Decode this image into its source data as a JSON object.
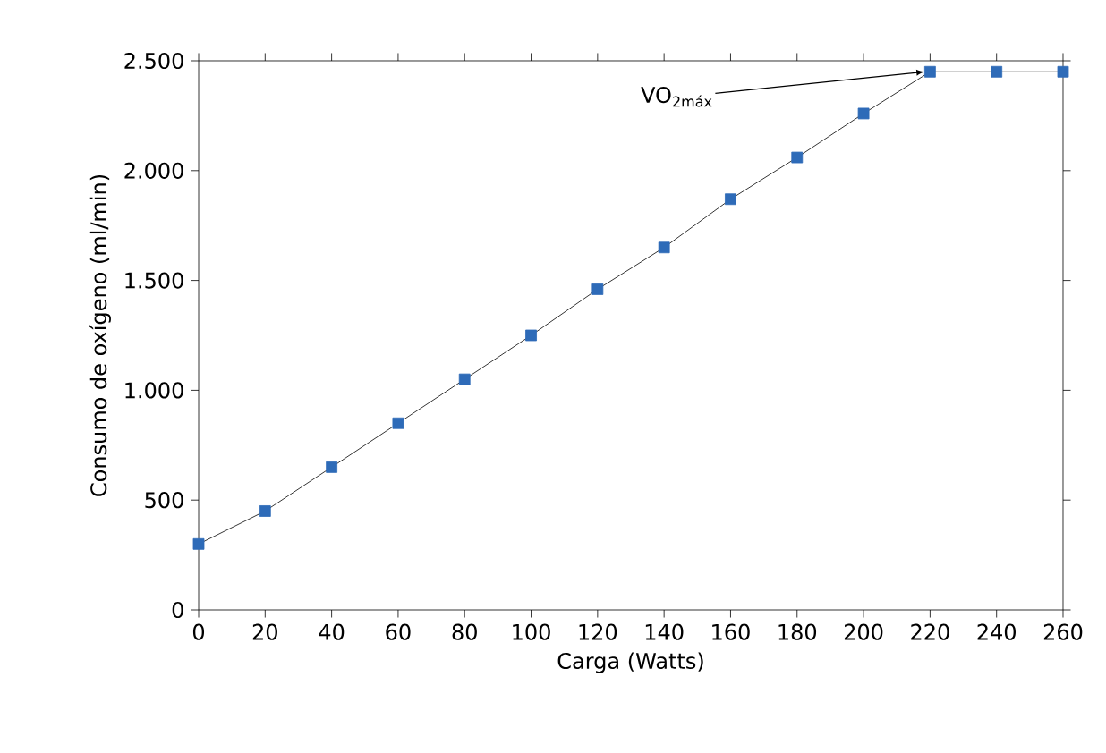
{
  "chart_data": {
    "type": "line",
    "xlabel": "Carga (Watts)",
    "ylabel": "Consumo de oxígeno (ml/min)",
    "x": [
      0,
      20,
      40,
      60,
      80,
      100,
      120,
      140,
      160,
      180,
      200,
      220,
      240,
      260
    ],
    "series": [
      {
        "color": "#2e6bb8",
        "values": [
          300,
          450,
          650,
          850,
          1050,
          1250,
          1460,
          1650,
          1870,
          2060,
          2260,
          2450,
          2450,
          2450
        ]
      }
    ],
    "xlim": [
      0,
      260
    ],
    "xticks": [
      0,
      20,
      40,
      60,
      80,
      100,
      120,
      140,
      160,
      180,
      200,
      220,
      240,
      260
    ],
    "ylim": [
      0,
      2500
    ],
    "yticks": [
      0,
      500,
      {
        "value": 1000,
        "label": "1.000"
      },
      {
        "value": 1500,
        "label": "1.500"
      },
      {
        "value": 2000,
        "label": "2.000"
      },
      {
        "value": 2500,
        "label": "2.500"
      }
    ],
    "annotations": [
      {
        "text": "VO$_{2máx}$",
        "x": 220,
        "y": 2450
      }
    ],
    "marker": "square",
    "line_style": "solid",
    "grid": false
  }
}
